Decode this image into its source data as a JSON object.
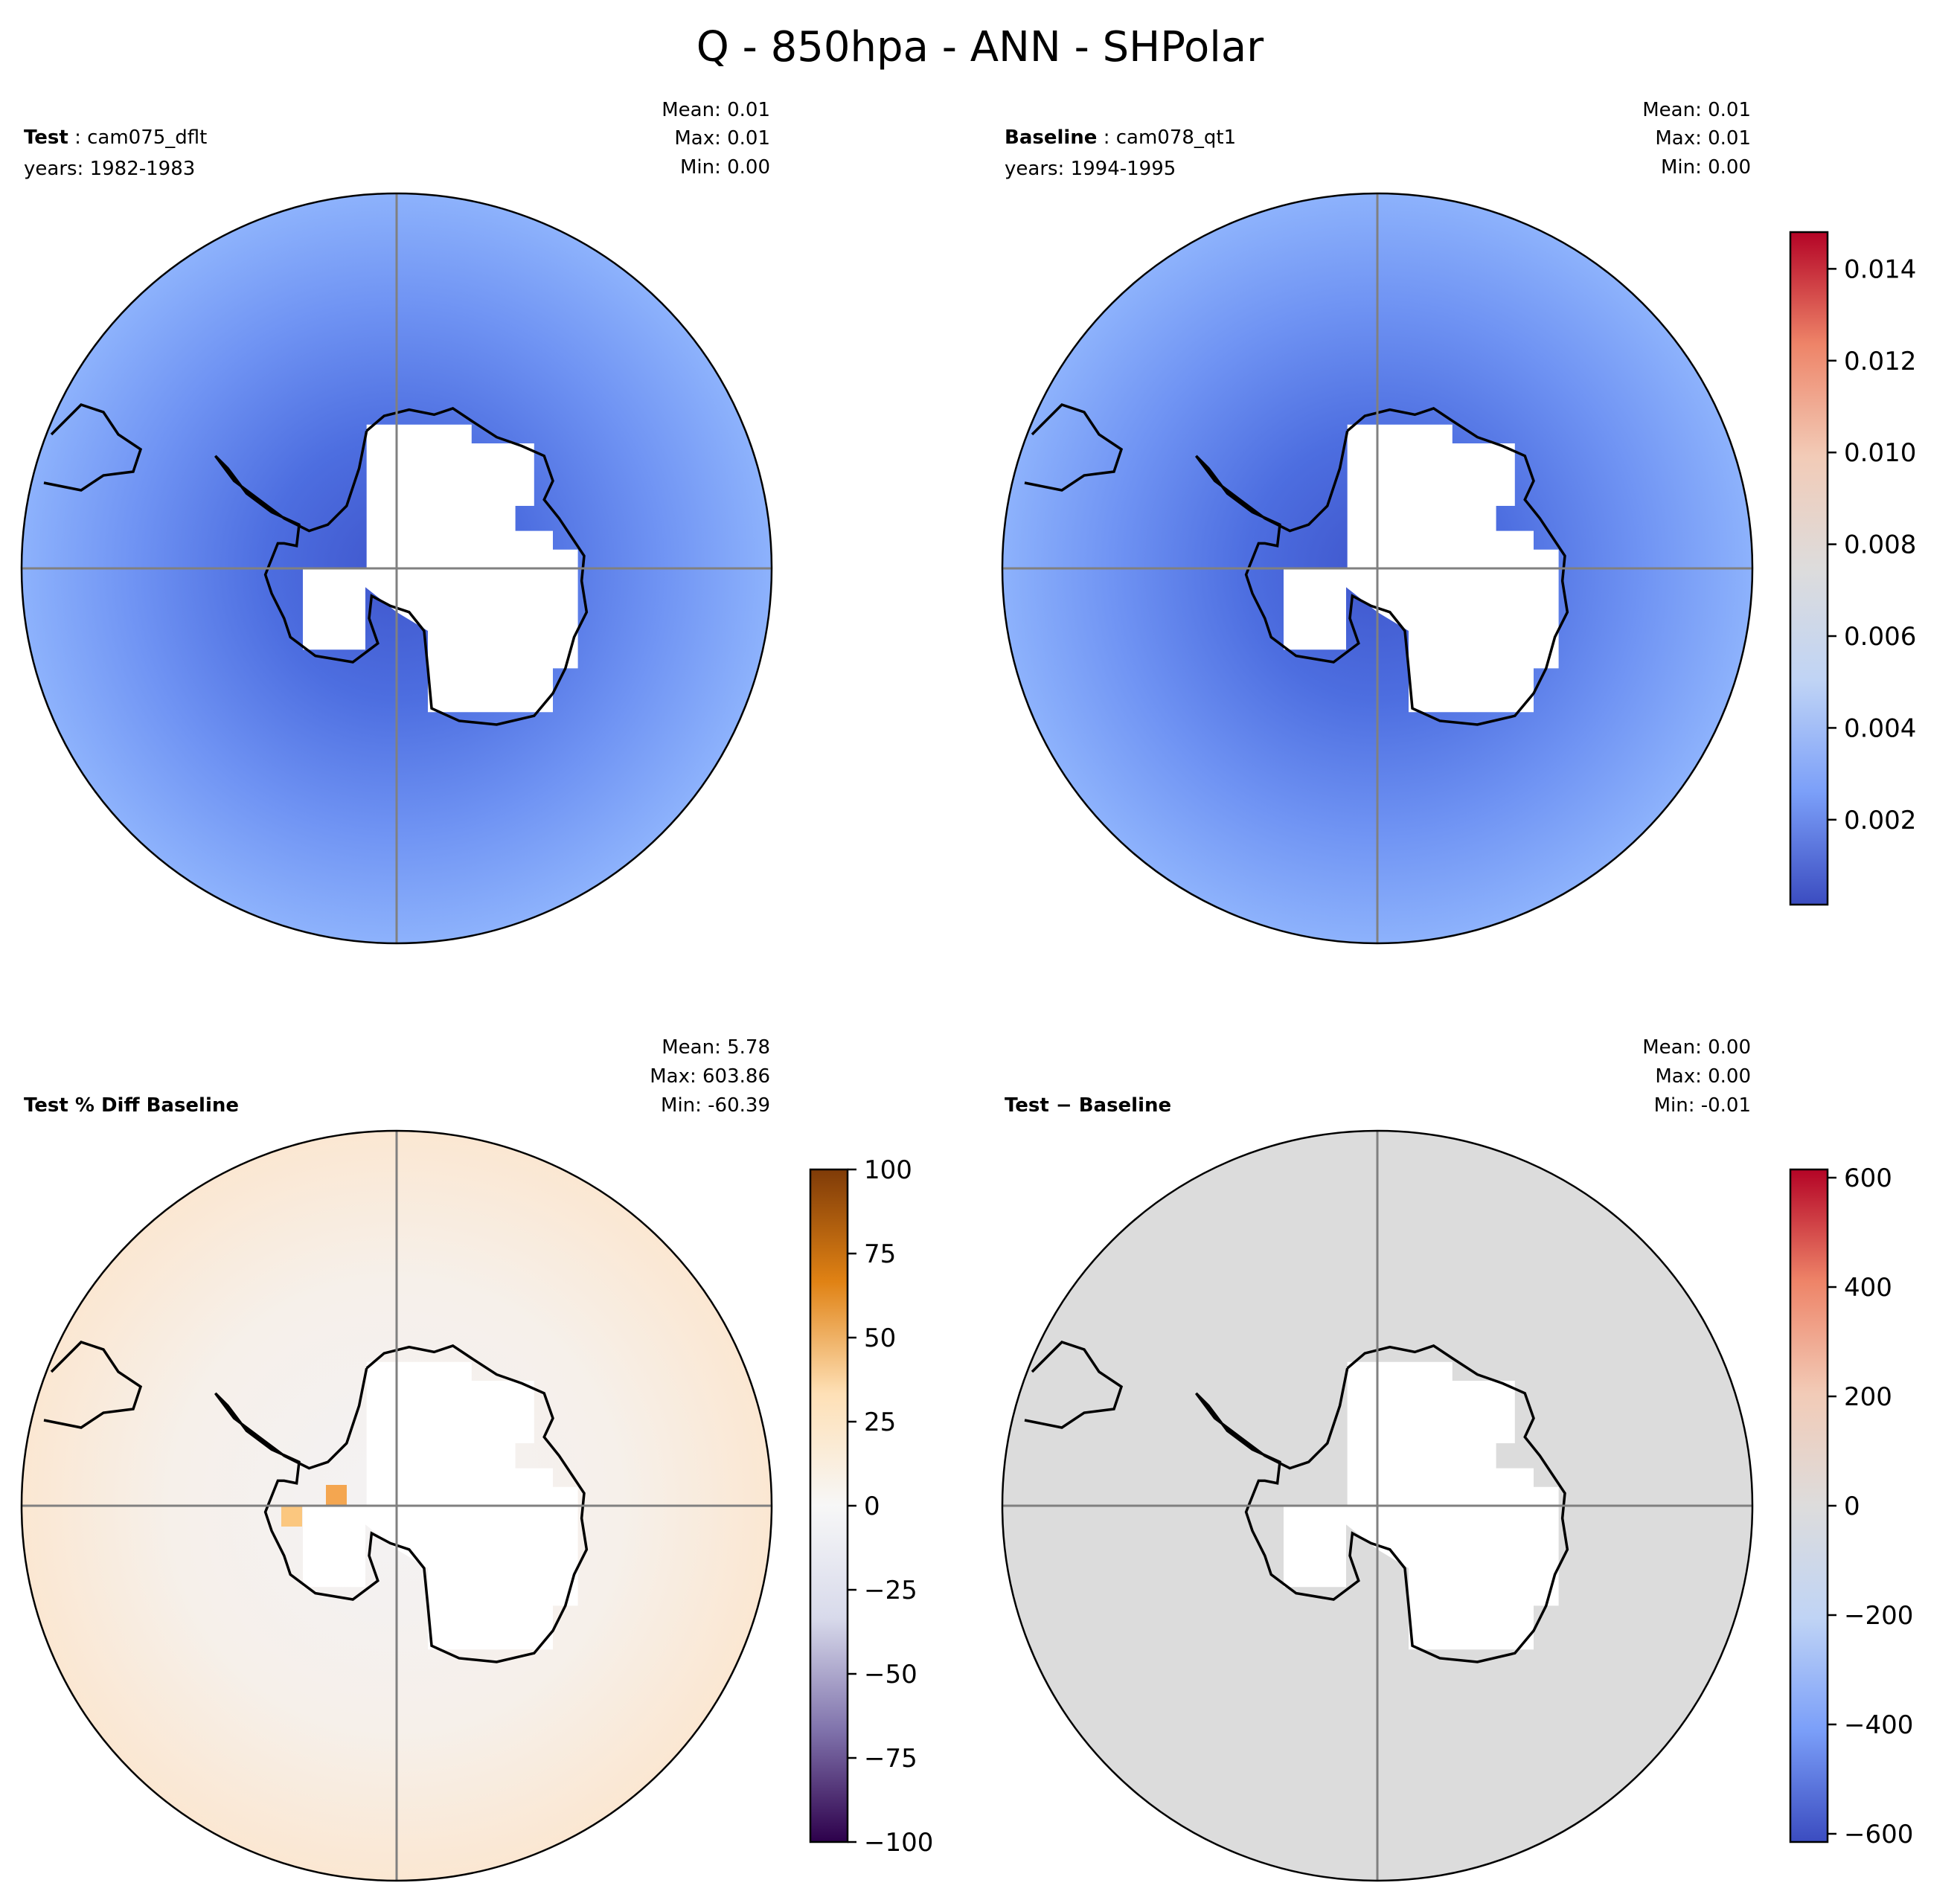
{
  "title": "Q - 850hpa - ANN - SHPolar",
  "panels": {
    "test": {
      "label": "Test",
      "case": "cam075_dflt",
      "years": "years: 1982-1983",
      "mean": "Mean:  0.01",
      "max": "Max:  0.01",
      "min": "Min:  0.00"
    },
    "baseline": {
      "label": "Baseline",
      "case": "cam078_qt1",
      "years": "years: 1994-1995",
      "mean": "Mean:  0.01",
      "max": "Max:  0.01",
      "min": "Min:  0.00"
    },
    "pctdiff": {
      "label": "Test % Diff Baseline",
      "mean": "Mean:  5.78",
      "max": "Max: 603.86",
      "min": "Min: -60.39"
    },
    "diff": {
      "label": "Test − Baseline",
      "mean": "Mean:  0.00",
      "max": "Max:  0.00",
      "min": "Min: -0.01"
    }
  },
  "chart_data": [
    {
      "type": "heatmap",
      "name": "test",
      "projection": "south polar stereographic",
      "colorbar": "main"
    },
    {
      "type": "heatmap",
      "name": "baseline",
      "projection": "south polar stereographic",
      "colorbar": "main"
    },
    {
      "type": "heatmap",
      "name": "pctdiff",
      "projection": "south polar stereographic",
      "colorbar": "pct"
    },
    {
      "type": "heatmap",
      "name": "diff",
      "projection": "south polar stereographic",
      "colorbar": "diff"
    }
  ],
  "colorbars": {
    "main": {
      "range": [
        0.00015,
        0.0148
      ],
      "ticks": [
        "0.002",
        "0.004",
        "0.006",
        "0.008",
        "0.010",
        "0.012",
        "0.014"
      ],
      "colors": [
        "#3b4cc0",
        "#7b9ff9",
        "#c0d4f5",
        "#dddcdc",
        "#f2cbb7",
        "#ee8468",
        "#b40426"
      ]
    },
    "pct": {
      "range": [
        -100,
        100
      ],
      "ticks": [
        "−100",
        "−75",
        "−50",
        "−25",
        "0",
        "25",
        "50",
        "75",
        "100"
      ],
      "colors": [
        "#2d004b",
        "#8073ac",
        "#d8daeb",
        "#f7f7f7",
        "#fee0b6",
        "#e08214",
        "#7f3b08"
      ]
    },
    "diff": {
      "range": [
        -615,
        615
      ],
      "ticks": [
        "−600",
        "−400",
        "−200",
        "0",
        "200",
        "400",
        "600"
      ],
      "colors": [
        "#3b4cc0",
        "#7b9ff9",
        "#c0d4f5",
        "#dddcdc",
        "#f2cbb7",
        "#ee8468",
        "#b40426"
      ]
    }
  }
}
